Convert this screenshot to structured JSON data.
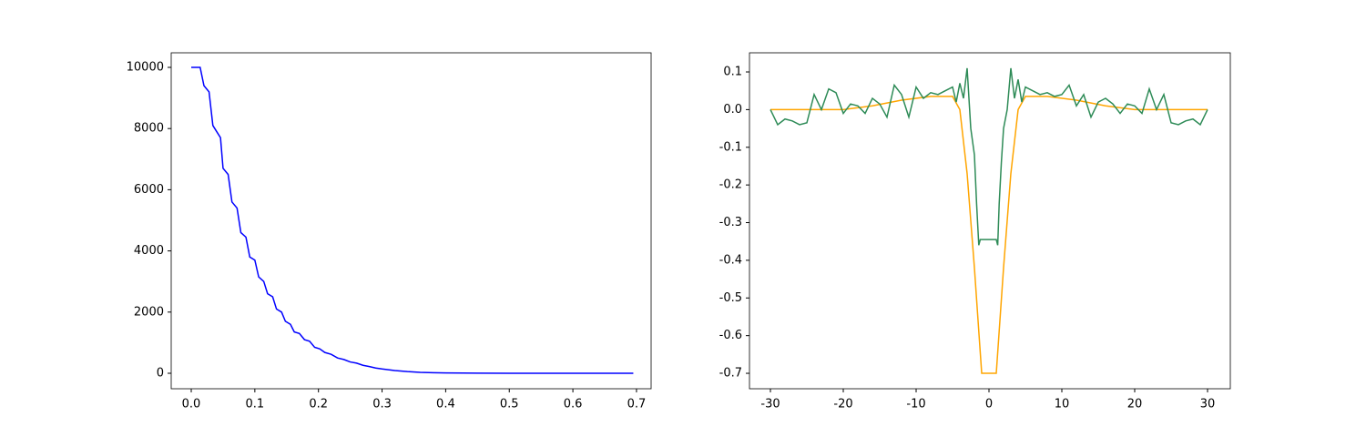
{
  "chart_data": [
    {
      "type": "line",
      "x": [
        0.0,
        0.014,
        0.02,
        0.028,
        0.034,
        0.04,
        0.046,
        0.05,
        0.058,
        0.064,
        0.072,
        0.078,
        0.086,
        0.092,
        0.1,
        0.106,
        0.114,
        0.12,
        0.128,
        0.134,
        0.142,
        0.148,
        0.156,
        0.162,
        0.17,
        0.178,
        0.186,
        0.194,
        0.202,
        0.21,
        0.22,
        0.23,
        0.24,
        0.25,
        0.26,
        0.27,
        0.28,
        0.29,
        0.3,
        0.32,
        0.34,
        0.36,
        0.38,
        0.4,
        0.45,
        0.5,
        0.6,
        0.695
      ],
      "series": [
        {
          "color": "#0000ff",
          "values": [
            10000,
            10000,
            9400,
            9200,
            8100,
            7900,
            7700,
            6700,
            6500,
            5600,
            5400,
            4600,
            4450,
            3800,
            3700,
            3150,
            3000,
            2600,
            2500,
            2100,
            2000,
            1700,
            1600,
            1350,
            1300,
            1100,
            1050,
            850,
            800,
            680,
            620,
            500,
            450,
            370,
            330,
            260,
            220,
            170,
            140,
            90,
            55,
            30,
            18,
            10,
            3,
            1,
            0,
            0
          ]
        }
      ],
      "xlim": [
        -0.0315,
        0.723
      ],
      "xticks": [
        {
          "value": 0,
          "label": "0.0"
        },
        0.1,
        0.2,
        0.3,
        0.4,
        0.5,
        0.6,
        0.7
      ],
      "ylim": [
        -506,
        10476
      ],
      "yticks": [
        0,
        2000,
        4000,
        6000,
        8000,
        10000
      ]
    },
    {
      "type": "line",
      "x": [
        -30,
        -20,
        -16,
        -12,
        -8,
        -5,
        -4,
        -3,
        -2,
        -1,
        1,
        2,
        3,
        4,
        5,
        8,
        12,
        16,
        20,
        30
      ],
      "series": [
        {
          "color": "#ffa500",
          "values": [
            0,
            0,
            0.01,
            0.025,
            0.035,
            0.035,
            0.0,
            -0.17,
            -0.42,
            -0.7,
            -0.7,
            -0.42,
            -0.17,
            0.0,
            0.035,
            0.035,
            0.025,
            0.01,
            0,
            0
          ]
        },
        {
          "color": "#2e8b57",
          "x": [
            -30,
            -29,
            -28,
            -27,
            -26,
            -25,
            -24,
            -23,
            -22,
            -21,
            -20,
            -19,
            -18,
            -17,
            -16,
            -15,
            -14,
            -13,
            -12,
            -11,
            -10,
            -9,
            -8,
            -7,
            -6,
            -5,
            -4.5,
            -4,
            -3.5,
            -3,
            -2.5,
            -2,
            -1.7,
            -1.4,
            -1.2,
            -1,
            -0.5,
            0,
            0.5,
            1,
            1.2,
            1.4,
            1.7,
            2,
            2.5,
            3,
            3.5,
            4,
            4.5,
            5,
            6,
            7,
            8,
            9,
            10,
            11,
            12,
            13,
            14,
            15,
            16,
            17,
            18,
            19,
            20,
            21,
            22,
            23,
            24,
            25,
            26,
            27,
            28,
            29,
            30
          ],
          "values": [
            0,
            -0.04,
            -0.025,
            -0.03,
            -0.04,
            -0.035,
            0.04,
            0.0,
            0.055,
            0.045,
            -0.01,
            0.015,
            0.01,
            -0.01,
            0.03,
            0.015,
            -0.02,
            0.065,
            0.04,
            -0.02,
            0.06,
            0.03,
            0.045,
            0.04,
            0.05,
            0.06,
            0.02,
            0.07,
            0.03,
            0.11,
            -0.05,
            -0.12,
            -0.25,
            -0.36,
            -0.345,
            -0.345,
            -0.345,
            -0.345,
            -0.345,
            -0.345,
            -0.36,
            -0.25,
            -0.14,
            -0.05,
            0.0,
            0.11,
            0.03,
            0.08,
            0.02,
            0.06,
            0.05,
            0.04,
            0.045,
            0.035,
            0.04,
            0.065,
            0.01,
            0.04,
            -0.02,
            0.02,
            0.03,
            0.015,
            -0.01,
            0.015,
            0.01,
            -0.01,
            0.055,
            0.0,
            0.04,
            -0.035,
            -0.04,
            -0.03,
            -0.025,
            -0.04,
            0
          ]
        }
      ],
      "xlim": [
        -32.875,
        33.125
      ],
      "xticks": [
        -30,
        -20,
        -10,
        0,
        10,
        20,
        30
      ],
      "ylim": [
        -0.741,
        0.1508
      ],
      "yticks": [
        0.1,
        {
          "value": 0,
          "label": "0.0"
        },
        -0.1,
        -0.2,
        -0.3,
        -0.4,
        -0.5,
        -0.6,
        -0.7
      ]
    }
  ]
}
